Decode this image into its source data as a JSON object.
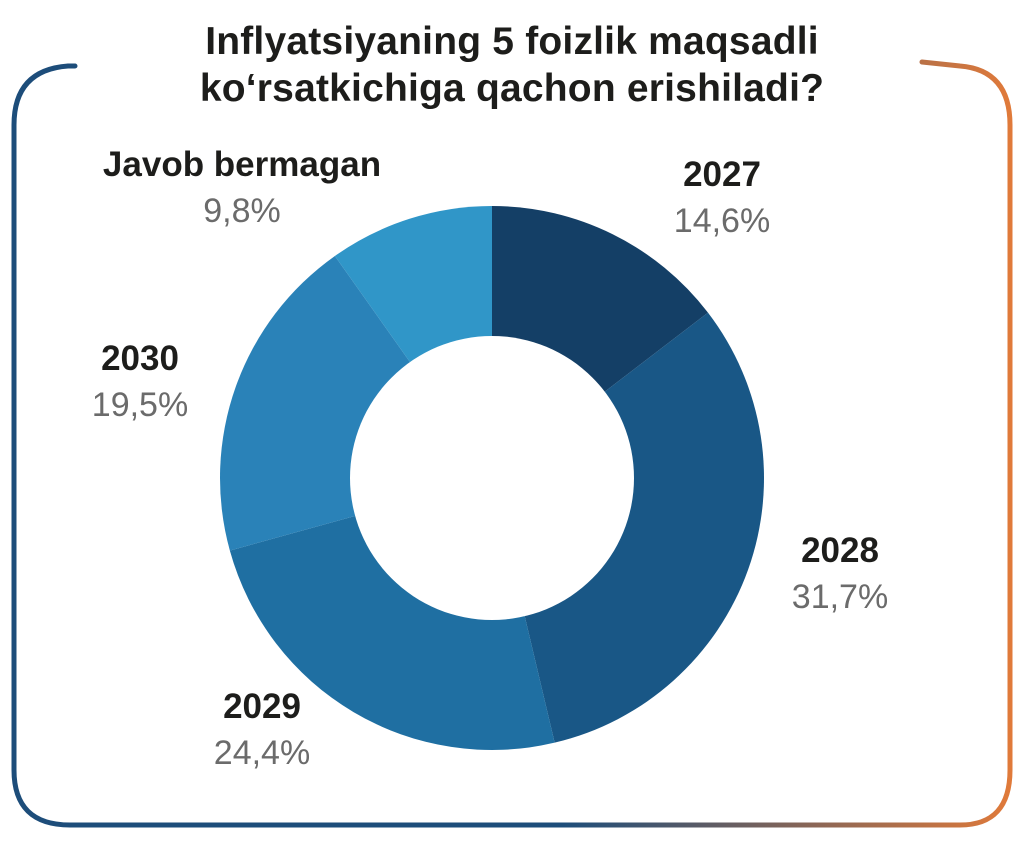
{
  "title": {
    "line1": "Inflyatsiyaning 5 foizlik maqsadli",
    "line2": "ko‘rsatkichiga qachon erishiladi?"
  },
  "colors": {
    "frame_left": "#1d4d7a",
    "frame_right": "#e07a3a",
    "hole": "#ffffff"
  },
  "chart_data": {
    "type": "pie",
    "donut": true,
    "title": "Inflyatsiyaning 5 foizlik maqsadli ko‘rsatkichiga qachon erishiladi?",
    "unit": "%",
    "categories": [
      "2027",
      "2028",
      "2029",
      "2030",
      "Javob bermagan"
    ],
    "values": [
      14.6,
      31.7,
      24.4,
      19.5,
      9.8
    ],
    "value_labels": [
      "14,6%",
      "31,7%",
      "24,4%",
      "19,5%",
      "9,8%"
    ],
    "colors": [
      "#143f66",
      "#195786",
      "#1f6fa2",
      "#2a82b8",
      "#3096c8"
    ],
    "legend": "none"
  }
}
